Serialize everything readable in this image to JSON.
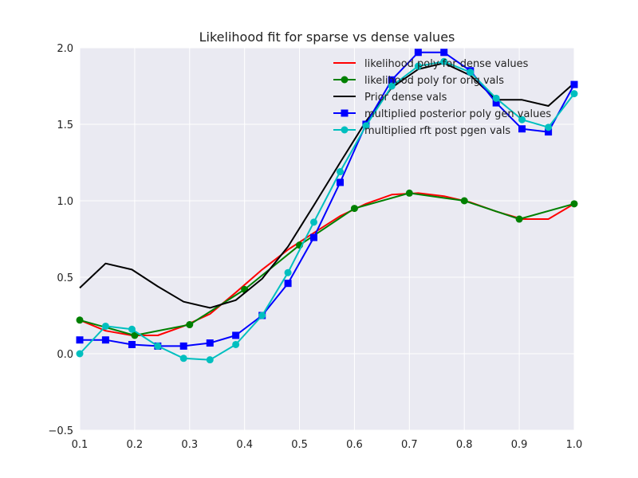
{
  "chart_data": {
    "type": "line",
    "title": "Likelihood fit for sparse vs dense values",
    "xlabel": "",
    "ylabel": "",
    "xlim": [
      0.1,
      1.0
    ],
    "ylim": [
      -0.5,
      2.0
    ],
    "xticks": [
      "0.1",
      "0.2",
      "0.3",
      "0.4",
      "0.5",
      "0.6",
      "0.7",
      "0.8",
      "0.9",
      "1.0"
    ],
    "yticks": [
      "−0.5",
      "0.0",
      "0.5",
      "1.0",
      "1.5",
      "2.0"
    ],
    "grid": true,
    "legend_position": "top-right",
    "colors": {
      "background": "#eaeaf2",
      "grid": "#ffffff"
    },
    "series": [
      {
        "name": "likelihood poly for dense values",
        "color": "#ff0000",
        "marker": "none",
        "x": [
          0.1,
          0.147,
          0.195,
          0.242,
          0.289,
          0.337,
          0.384,
          0.432,
          0.479,
          0.526,
          0.574,
          0.621,
          0.668,
          0.716,
          0.763,
          0.811,
          0.858,
          0.905,
          0.953,
          1.0
        ],
        "y": [
          0.22,
          0.15,
          0.12,
          0.12,
          0.18,
          0.26,
          0.4,
          0.55,
          0.68,
          0.79,
          0.9,
          0.98,
          1.04,
          1.05,
          1.03,
          0.99,
          0.93,
          0.88,
          0.88,
          0.98
        ]
      },
      {
        "name": "likelihood poly for orig vals",
        "color": "#008000",
        "marker": "circle",
        "x": [
          0.1,
          0.2,
          0.3,
          0.4,
          0.5,
          0.6,
          0.7,
          0.8,
          0.9,
          1.0
        ],
        "y": [
          0.22,
          0.12,
          0.19,
          0.42,
          0.71,
          0.95,
          1.05,
          1.0,
          0.88,
          0.98
        ]
      },
      {
        "name": "Prior dense vals",
        "color": "#000000",
        "marker": "none",
        "x": [
          0.1,
          0.147,
          0.195,
          0.242,
          0.289,
          0.337,
          0.384,
          0.432,
          0.479,
          0.526,
          0.574,
          0.621,
          0.668,
          0.716,
          0.763,
          0.811,
          0.858,
          0.905,
          0.953,
          1.0
        ],
        "y": [
          0.43,
          0.59,
          0.55,
          0.44,
          0.34,
          0.3,
          0.35,
          0.49,
          0.7,
          0.97,
          1.25,
          1.52,
          1.74,
          1.86,
          1.9,
          1.82,
          1.66,
          1.66,
          1.62,
          1.77
        ]
      },
      {
        "name": "multiplied posterior poly gen values",
        "color": "#0000ff",
        "marker": "square",
        "x": [
          0.1,
          0.147,
          0.195,
          0.242,
          0.289,
          0.337,
          0.384,
          0.432,
          0.479,
          0.526,
          0.574,
          0.621,
          0.668,
          0.716,
          0.763,
          0.811,
          0.858,
          0.905,
          0.953,
          1.0
        ],
        "y": [
          0.09,
          0.09,
          0.06,
          0.05,
          0.05,
          0.07,
          0.12,
          0.25,
          0.46,
          0.76,
          1.12,
          1.5,
          1.79,
          1.97,
          1.97,
          1.85,
          1.64,
          1.47,
          1.45,
          1.76
        ]
      },
      {
        "name": "multiplied rft post pgen vals",
        "color": "#00bfbf",
        "marker": "circle",
        "x": [
          0.1,
          0.147,
          0.195,
          0.242,
          0.289,
          0.337,
          0.384,
          0.432,
          0.479,
          0.526,
          0.574,
          0.621,
          0.668,
          0.716,
          0.763,
          0.811,
          0.858,
          0.905,
          0.953,
          1.0
        ],
        "y": [
          0.0,
          0.18,
          0.16,
          0.05,
          -0.03,
          -0.04,
          0.06,
          0.25,
          0.53,
          0.86,
          1.19,
          1.49,
          1.75,
          1.88,
          1.91,
          1.84,
          1.67,
          1.53,
          1.48,
          1.7
        ]
      }
    ]
  }
}
